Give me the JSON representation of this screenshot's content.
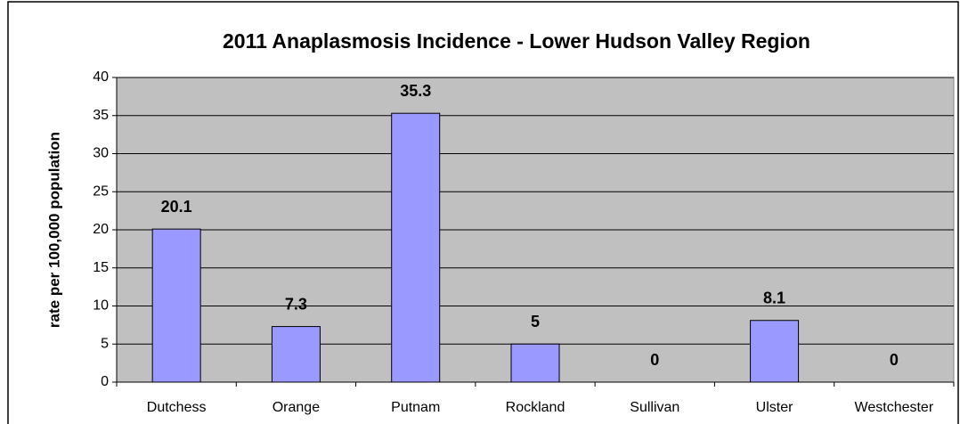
{
  "chart_data": {
    "type": "bar",
    "title": "2011 Anaplasmosis Incidence - Lower Hudson Valley Region",
    "y_label": "rate per 100,000 population",
    "categories": [
      "Dutchess",
      "Orange",
      "Putnam",
      "Rockland",
      "Sullivan",
      "Ulster",
      "Westchester"
    ],
    "values": [
      20.1,
      7.3,
      35.3,
      5,
      0,
      8.1,
      0
    ],
    "color": "#9999ff",
    "ylim": [
      0,
      40
    ],
    "yticks": [
      0,
      5,
      10,
      15,
      20,
      25,
      30,
      35,
      40
    ],
    "grid": true
  }
}
